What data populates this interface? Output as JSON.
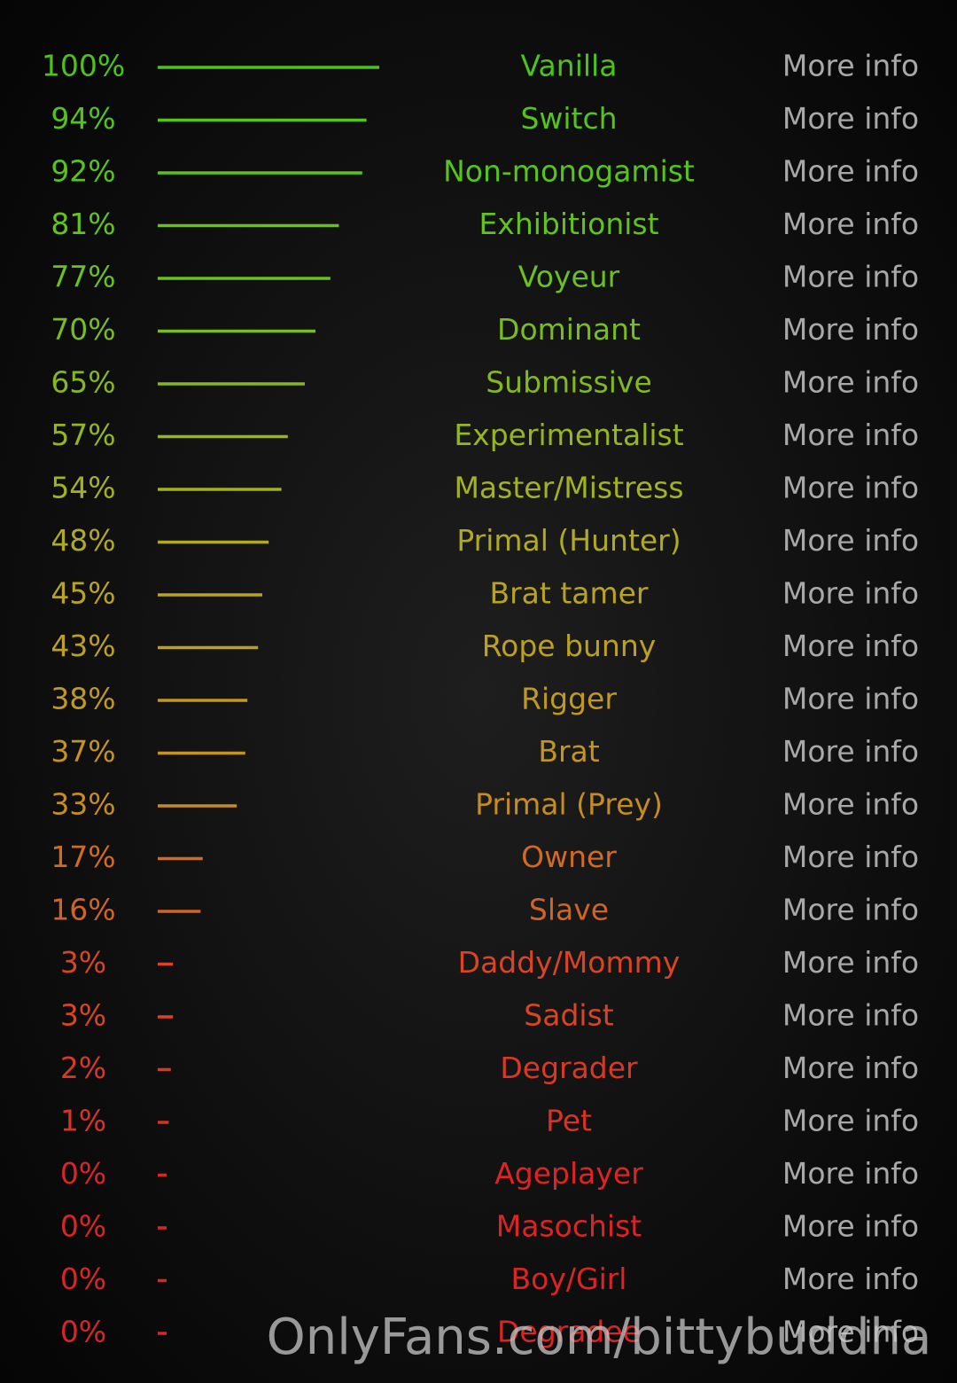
{
  "results": [
    {
      "percent": "100%",
      "value": 100,
      "name": "Vanilla",
      "link": "More info",
      "color": "#4cc21c"
    },
    {
      "percent": "94%",
      "value": 94,
      "name": "Switch",
      "link": "More info",
      "color": "#52c41c"
    },
    {
      "percent": "92%",
      "value": 92,
      "name": "Non-monogamist",
      "link": "More info",
      "color": "#56c41c"
    },
    {
      "percent": "81%",
      "value": 81,
      "name": "Exhibitionist",
      "link": "More info",
      "color": "#62c21e"
    },
    {
      "percent": "77%",
      "value": 77,
      "name": "Voyeur",
      "link": "More info",
      "color": "#6ac020"
    },
    {
      "percent": "70%",
      "value": 70,
      "name": "Dominant",
      "link": "More info",
      "color": "#78bc20"
    },
    {
      "percent": "65%",
      "value": 65,
      "name": "Submissive",
      "link": "More info",
      "color": "#84b820"
    },
    {
      "percent": "57%",
      "value": 57,
      "name": "Experimentalist",
      "link": "More info",
      "color": "#96b620"
    },
    {
      "percent": "54%",
      "value": 54,
      "name": "Master/Mistress",
      "link": "More info",
      "color": "#a2b220"
    },
    {
      "percent": "48%",
      "value": 48,
      "name": "Primal (Hunter)",
      "link": "More info",
      "color": "#b0aa22"
    },
    {
      "percent": "45%",
      "value": 45,
      "name": "Brat tamer",
      "link": "More info",
      "color": "#b8a422"
    },
    {
      "percent": "43%",
      "value": 43,
      "name": "Rope bunny",
      "link": "More info",
      "color": "#bca022"
    },
    {
      "percent": "38%",
      "value": 38,
      "name": "Rigger",
      "link": "More info",
      "color": "#c29822"
    },
    {
      "percent": "37%",
      "value": 37,
      "name": "Brat",
      "link": "More info",
      "color": "#c49422"
    },
    {
      "percent": "33%",
      "value": 33,
      "name": "Primal (Prey)",
      "link": "More info",
      "color": "#c48c22"
    },
    {
      "percent": "17%",
      "value": 17,
      "name": "Owner",
      "link": "More info",
      "color": "#d06a24"
    },
    {
      "percent": "16%",
      "value": 16,
      "name": "Slave",
      "link": "More info",
      "color": "#d06424"
    },
    {
      "percent": "3%",
      "value": 3,
      "name": "Daddy/Mommy",
      "link": "More info",
      "color": "#d84424"
    },
    {
      "percent": "3%",
      "value": 3,
      "name": "Sadist",
      "link": "More info",
      "color": "#d84424"
    },
    {
      "percent": "2%",
      "value": 2,
      "name": "Degrader",
      "link": "More info",
      "color": "#d83824"
    },
    {
      "percent": "1%",
      "value": 1,
      "name": "Pet",
      "link": "More info",
      "color": "#dc3024"
    },
    {
      "percent": "0%",
      "value": 0,
      "name": "Ageplayer",
      "link": "More info",
      "color": "#dc2424"
    },
    {
      "percent": "0%",
      "value": 0,
      "name": "Masochist",
      "link": "More info",
      "color": "#dc2424"
    },
    {
      "percent": "0%",
      "value": 0,
      "name": "Boy/Girl",
      "link": "More info",
      "color": "#dc2424"
    },
    {
      "percent": "0%",
      "value": 0,
      "name": "Degradee",
      "link": "More info",
      "color": "#dc2424"
    }
  ],
  "watermark": "OnlyFans.com/bittybuddha"
}
